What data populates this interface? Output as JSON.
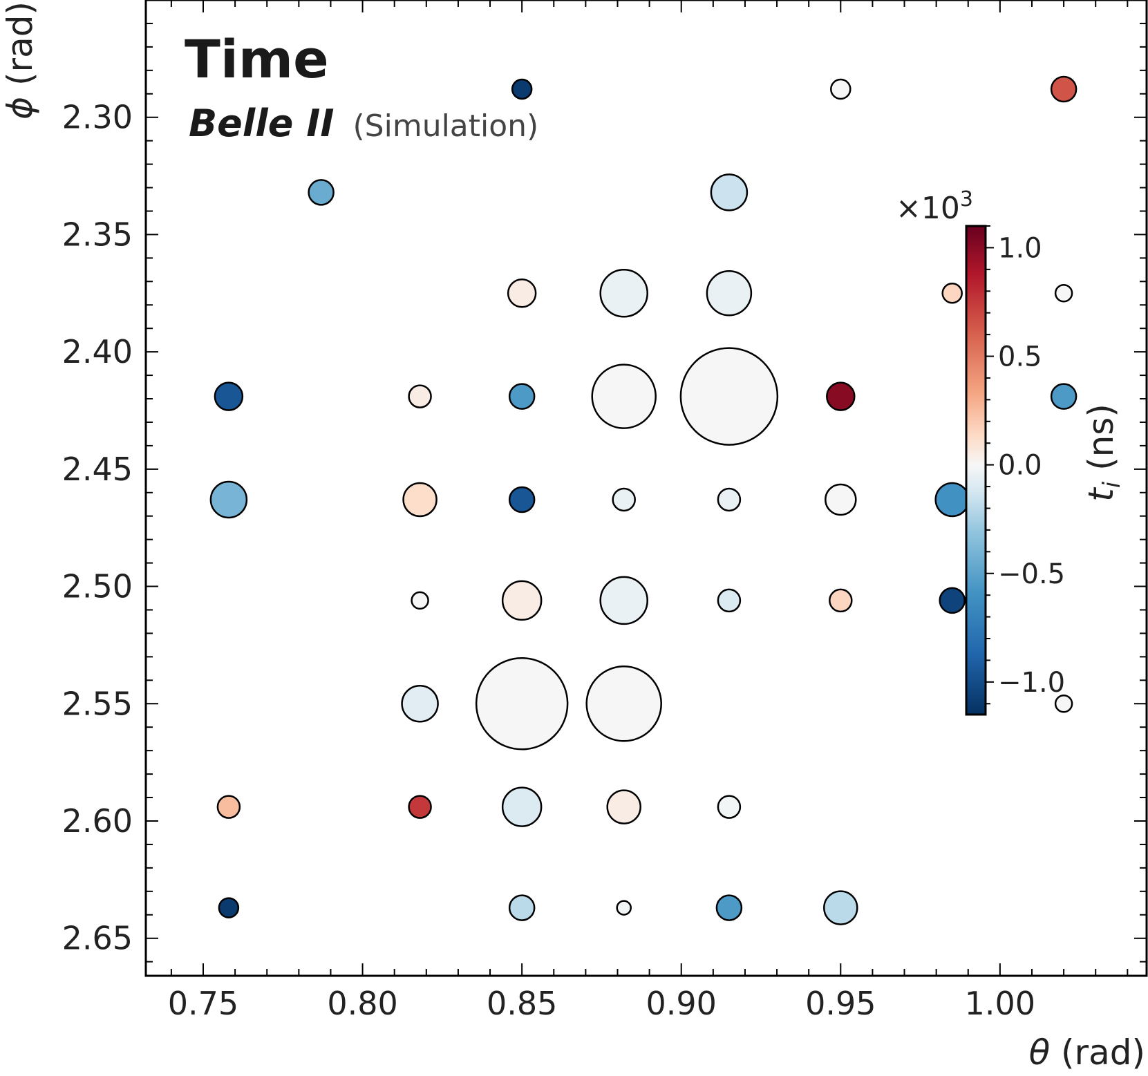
{
  "chart_data": {
    "type": "scatter",
    "title": "Time",
    "experiment": "Belle II",
    "status": "(Simulation)",
    "xlabel_symbol": "θ",
    "xlabel_unit": " (rad)",
    "ylabel_symbol": "ϕ",
    "ylabel_unit": " (rad)",
    "xlim": [
      0.732,
      1.046
    ],
    "ylim": [
      2.666,
      2.25
    ],
    "x_ticks": [
      0.75,
      0.8,
      0.85,
      0.9,
      0.95,
      1.0
    ],
    "x_tick_labels": [
      "0.75",
      "0.80",
      "0.85",
      "0.90",
      "0.95",
      "1.00"
    ],
    "y_ticks": [
      2.3,
      2.35,
      2.4,
      2.45,
      2.5,
      2.55,
      2.6,
      2.65
    ],
    "y_tick_labels": [
      "2.30",
      "2.35",
      "2.40",
      "2.45",
      "2.50",
      "2.55",
      "2.60",
      "2.65"
    ],
    "colorbar": {
      "label_symbol": "t",
      "label_sub": "i",
      "label_unit": " (ns)",
      "multiplier": "×10",
      "multiplier_exp": "3",
      "range": [
        -1.15,
        1.1
      ],
      "ticks": [
        1.0,
        0.5,
        0.0,
        -0.5,
        -1.0
      ],
      "tick_labels": [
        "1.0",
        "0.5",
        "0.0",
        "−0.5",
        "−1.0"
      ],
      "colormap": "RdBu_r"
    },
    "points": [
      {
        "theta": 0.85,
        "phi": 2.288,
        "t": -1.1,
        "size": 0.7
      },
      {
        "theta": 0.95,
        "phi": 2.288,
        "t": 0.0,
        "size": 0.7
      },
      {
        "theta": 1.02,
        "phi": 2.288,
        "t": 0.65,
        "size": 0.9
      },
      {
        "theta": 0.787,
        "phi": 2.332,
        "t": -0.45,
        "size": 0.9
      },
      {
        "theta": 0.915,
        "phi": 2.332,
        "t": -0.15,
        "size": 1.3
      },
      {
        "theta": 0.85,
        "phi": 2.375,
        "t": 0.05,
        "size": 1.0
      },
      {
        "theta": 0.882,
        "phi": 2.375,
        "t": -0.05,
        "size": 1.7
      },
      {
        "theta": 0.915,
        "phi": 2.375,
        "t": -0.05,
        "size": 1.6
      },
      {
        "theta": 0.985,
        "phi": 2.375,
        "t": 0.15,
        "size": 0.7
      },
      {
        "theta": 1.02,
        "phi": 2.375,
        "t": 0.0,
        "size": 0.6
      },
      {
        "theta": 0.758,
        "phi": 2.419,
        "t": -0.95,
        "size": 1.0
      },
      {
        "theta": 0.818,
        "phi": 2.419,
        "t": 0.05,
        "size": 0.8
      },
      {
        "theta": 0.85,
        "phi": 2.419,
        "t": -0.55,
        "size": 0.9
      },
      {
        "theta": 0.882,
        "phi": 2.419,
        "t": 0.0,
        "size": 2.3
      },
      {
        "theta": 0.915,
        "phi": 2.419,
        "t": 0.0,
        "size": 3.5
      },
      {
        "theta": 0.95,
        "phi": 2.419,
        "t": 1.0,
        "size": 1.0
      },
      {
        "theta": 1.02,
        "phi": 2.419,
        "t": -0.55,
        "size": 0.9
      },
      {
        "theta": 0.758,
        "phi": 2.463,
        "t": -0.4,
        "size": 1.3
      },
      {
        "theta": 0.818,
        "phi": 2.463,
        "t": 0.12,
        "size": 1.2
      },
      {
        "theta": 0.85,
        "phi": 2.463,
        "t": -0.95,
        "size": 0.9
      },
      {
        "theta": 0.882,
        "phi": 2.463,
        "t": -0.05,
        "size": 0.8
      },
      {
        "theta": 0.915,
        "phi": 2.463,
        "t": -0.05,
        "size": 0.8
      },
      {
        "theta": 0.95,
        "phi": 2.463,
        "t": 0.0,
        "size": 1.1
      },
      {
        "theta": 0.985,
        "phi": 2.463,
        "t": -0.6,
        "size": 1.2
      },
      {
        "theta": 0.818,
        "phi": 2.506,
        "t": 0.0,
        "size": 0.6
      },
      {
        "theta": 0.85,
        "phi": 2.506,
        "t": 0.05,
        "size": 1.4
      },
      {
        "theta": 0.882,
        "phi": 2.506,
        "t": -0.05,
        "size": 1.7
      },
      {
        "theta": 0.915,
        "phi": 2.506,
        "t": -0.1,
        "size": 0.8
      },
      {
        "theta": 0.95,
        "phi": 2.506,
        "t": 0.15,
        "size": 0.8
      },
      {
        "theta": 0.985,
        "phi": 2.506,
        "t": -1.05,
        "size": 0.9
      },
      {
        "theta": 0.818,
        "phi": 2.55,
        "t": -0.08,
        "size": 1.3
      },
      {
        "theta": 0.85,
        "phi": 2.55,
        "t": 0.0,
        "size": 3.3
      },
      {
        "theta": 0.882,
        "phi": 2.55,
        "t": 0.0,
        "size": 2.7
      },
      {
        "theta": 1.02,
        "phi": 2.55,
        "t": 0.0,
        "size": 0.6
      },
      {
        "theta": 0.758,
        "phi": 2.594,
        "t": 0.25,
        "size": 0.8
      },
      {
        "theta": 0.818,
        "phi": 2.594,
        "t": 0.75,
        "size": 0.8
      },
      {
        "theta": 0.85,
        "phi": 2.594,
        "t": -0.1,
        "size": 1.4
      },
      {
        "theta": 0.882,
        "phi": 2.594,
        "t": 0.05,
        "size": 1.2
      },
      {
        "theta": 0.915,
        "phi": 2.594,
        "t": -0.02,
        "size": 0.8
      },
      {
        "theta": 0.758,
        "phi": 2.637,
        "t": -1.1,
        "size": 0.7
      },
      {
        "theta": 0.85,
        "phi": 2.637,
        "t": -0.2,
        "size": 0.9
      },
      {
        "theta": 0.882,
        "phi": 2.637,
        "t": -0.02,
        "size": 0.5
      },
      {
        "theta": 0.915,
        "phi": 2.637,
        "t": -0.55,
        "size": 0.9
      },
      {
        "theta": 0.95,
        "phi": 2.637,
        "t": -0.2,
        "size": 1.2
      }
    ]
  }
}
